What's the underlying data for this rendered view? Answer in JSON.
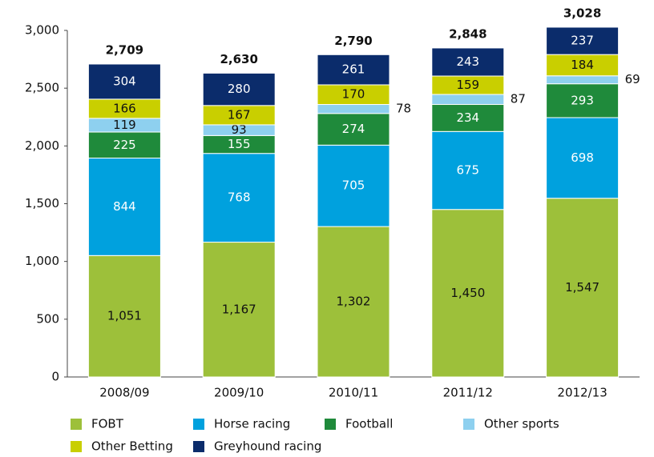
{
  "chart_data": {
    "type": "stacked_bar",
    "categories": [
      "2008/09",
      "2009/10",
      "2010/11",
      "2011/12",
      "2012/13"
    ],
    "series": [
      {
        "name": "FOBT",
        "color": "#9dc03a",
        "values": [
          1051,
          1167,
          1302,
          1450,
          1547
        ],
        "value_labels": [
          "1,051",
          "1,167",
          "1,302",
          "1,450",
          "1,547"
        ]
      },
      {
        "name": "Horse racing",
        "color": "#00a1de",
        "values": [
          844,
          768,
          705,
          675,
          698
        ]
      },
      {
        "name": "Football",
        "color": "#1f8a3b",
        "values": [
          225,
          155,
          274,
          234,
          293
        ]
      },
      {
        "name": "Other sports",
        "color": "#8ed0ef",
        "values": [
          119,
          93,
          78,
          87,
          69
        ]
      },
      {
        "name": "Other Betting",
        "color": "#c9cf00",
        "values": [
          166,
          167,
          170,
          159,
          184
        ]
      },
      {
        "name": "Greyhound racing",
        "color": "#0b2c6b",
        "values": [
          304,
          280,
          261,
          243,
          237
        ]
      }
    ],
    "totals": {
      "values": [
        2709,
        2630,
        2790,
        2848,
        3028
      ],
      "value_labels": [
        "2,709",
        "2,630",
        "2,790",
        "2,848",
        "3,028"
      ]
    },
    "ylim": [
      0,
      3000
    ],
    "yticks": [
      0,
      500,
      {
        "value": 1000,
        "label": "1,000"
      },
      {
        "value": 1500,
        "label": "1,500"
      },
      {
        "value": 2000,
        "label": "2,000"
      },
      {
        "value": 2500,
        "label": "2,500"
      },
      {
        "value": 3000,
        "label": "3,000"
      }
    ],
    "grid": false
  }
}
